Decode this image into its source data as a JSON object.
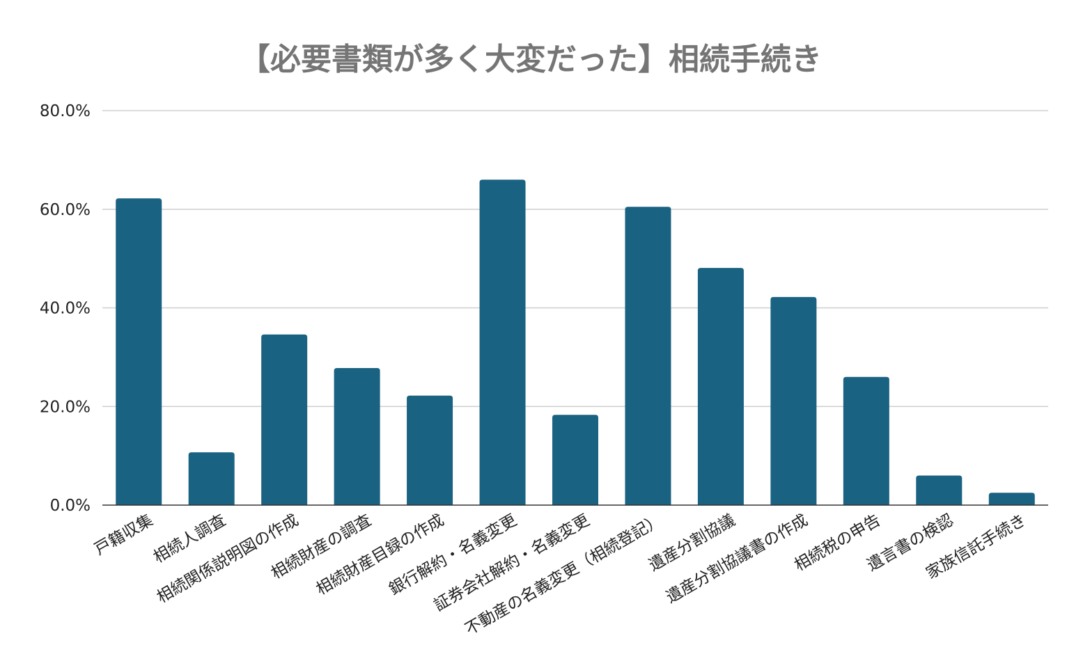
{
  "chart_data": {
    "type": "bar",
    "title": "【必要書類が多く大変だった】相続手続き",
    "xlabel": "",
    "ylabel": "",
    "categories": [
      "戸籍収集",
      "相続人調査",
      "相続関係説明図の作成",
      "相続財産の調査",
      "相続財産目録の作成",
      "銀行解約・名義変更",
      "証券会社解約・名義変更",
      "不動産の名義変更（相続登記）",
      "遺産分割協議",
      "遺産分割協議書の作成",
      "相続税の申告",
      "遺言書の検認",
      "家族信託手続き"
    ],
    "values": [
      62.2,
      10.7,
      34.6,
      27.8,
      22.2,
      66.0,
      18.3,
      60.5,
      48.1,
      42.2,
      26.0,
      6.0,
      2.5
    ],
    "ylim": [
      0,
      80
    ],
    "yticks": [
      0,
      20,
      40,
      60,
      80
    ],
    "ytick_labels": [
      "0.0%",
      "20.0%",
      "40.0%",
      "60.0%",
      "80.0%"
    ],
    "grid": true,
    "legend": "none",
    "colors": {
      "bar": "#1a6282",
      "title": "#757575",
      "grid": "#cfcfcf",
      "axis": "#333333",
      "text": "#222222"
    }
  }
}
